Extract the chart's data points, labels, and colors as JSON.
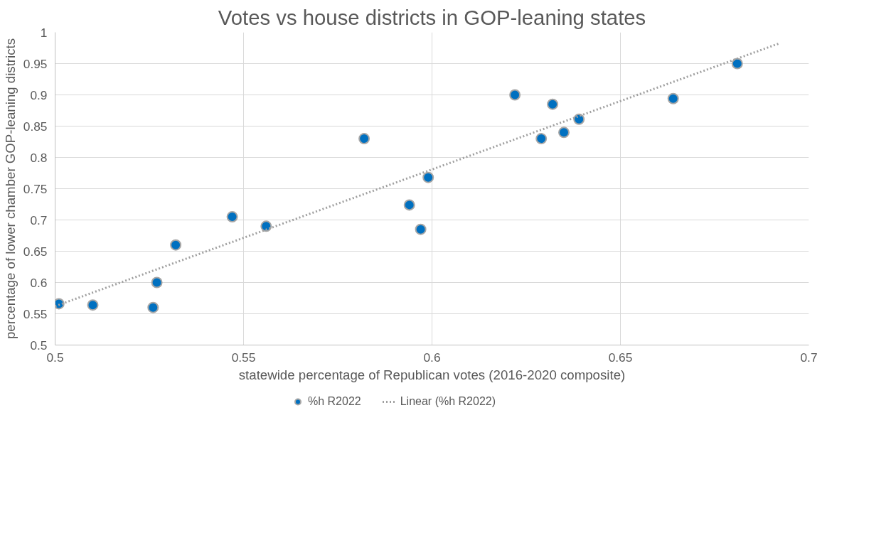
{
  "chart_data": {
    "type": "scatter",
    "title": "Votes vs house districts in GOP-leaning states",
    "xlabel": "statewide percentage of Republican votes (2016-2020 composite)",
    "ylabel": "percentage of lower chamber GOP-leaning districts",
    "xlim": [
      0.5,
      0.7
    ],
    "xticks": [
      0.5,
      0.55,
      0.6,
      0.65,
      0.7
    ],
    "ylim": [
      0.5,
      1
    ],
    "yticks": [
      0.5,
      0.55,
      0.6,
      0.65,
      0.7,
      0.75,
      0.8,
      0.85,
      0.9,
      0.95,
      1
    ],
    "grid": true,
    "legend": "bottom",
    "series": [
      {
        "name": "%h R2022",
        "marker": "circle",
        "color": "#0070c0",
        "x": [
          0.501,
          0.51,
          0.526,
          0.527,
          0.532,
          0.547,
          0.556,
          0.582,
          0.594,
          0.597,
          0.599,
          0.622,
          0.629,
          0.632,
          0.635,
          0.639,
          0.664,
          0.681
        ],
        "values": [
          0.566,
          0.564,
          0.56,
          0.6,
          0.66,
          0.705,
          0.69,
          0.83,
          0.724,
          0.685,
          0.768,
          0.9,
          0.83,
          0.885,
          0.84,
          0.861,
          0.894,
          0.95
        ]
      },
      {
        "name": "Linear (%h R2022)",
        "type": "line",
        "color": "#a0a0a0",
        "line_style": "dotted",
        "x": [
          0.5,
          0.692
        ],
        "values": [
          0.562,
          0.982
        ]
      }
    ]
  }
}
